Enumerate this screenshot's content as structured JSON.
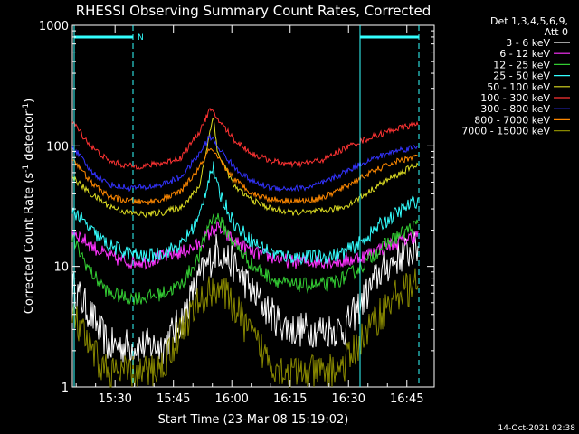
{
  "chart_data": {
    "type": "line",
    "title": "RHESSI Observing Summary Count Rates, Corrected",
    "xlabel": "Start Time (23-Mar-08 15:19:02)",
    "ylabel_main": "Corrected Count Rate (s",
    "ylabel_sup1": "-1",
    "ylabel_mid": " detector",
    "ylabel_sup2": "-1",
    "ylabel_end": ")",
    "y_scale": "log",
    "ylim": [
      1,
      1000
    ],
    "xlim_minutes": [
      0,
      62
    ],
    "x_ticks": [
      {
        "label": "15:30",
        "minute": 10.97
      },
      {
        "label": "15:45",
        "minute": 25.97
      },
      {
        "label": "16:00",
        "minute": 40.97
      },
      {
        "label": "16:15",
        "minute": 55.97
      },
      {
        "label": "16:30",
        "minute": 70.97
      },
      {
        "label": "16:45",
        "minute": 85.97
      }
    ],
    "y_ticks": [
      {
        "label": "1",
        "value": 1
      },
      {
        "label": "10",
        "value": 10
      },
      {
        "label": "100",
        "value": 100
      },
      {
        "label": "1000",
        "value": 1000
      }
    ],
    "legend_header": [
      "Det 1,3,4,5,6,9,",
      "Att 0"
    ],
    "legend_position": "right",
    "night_marker": "N",
    "timestamp": "14-Oct-2021 02:38",
    "series": [
      {
        "name": "3 - 6 keV",
        "color": "#ffffff",
        "x": [
          0,
          5,
          10,
          15,
          20,
          25,
          30,
          35,
          40,
          45,
          50,
          55,
          60,
          65,
          70,
          75,
          80,
          85,
          90,
          95,
          100
        ],
        "y": [
          7,
          4,
          2.2,
          2.2,
          2.2,
          2.2,
          3.5,
          8,
          14,
          10,
          6,
          4,
          3,
          3,
          3,
          3,
          5,
          9,
          12,
          14,
          14
        ]
      },
      {
        "name": "6 - 12 keV",
        "color": "#ff33ff",
        "x": [
          0,
          5,
          10,
          15,
          20,
          25,
          30,
          35,
          38,
          40,
          45,
          50,
          55,
          60,
          65,
          70,
          75,
          80,
          85,
          90,
          95,
          100
        ],
        "y": [
          20,
          15,
          12,
          11,
          11,
          12,
          13,
          15,
          19,
          21,
          16,
          13,
          12,
          11,
          11,
          11,
          11,
          12,
          14,
          16,
          18,
          18
        ]
      },
      {
        "name": "12 - 25 keV",
        "color": "#33cc33",
        "x": [
          0,
          5,
          10,
          15,
          20,
          25,
          30,
          35,
          38,
          40,
          45,
          50,
          55,
          60,
          65,
          70,
          75,
          80,
          85,
          90,
          95,
          100
        ],
        "y": [
          17,
          9,
          6,
          5.5,
          5.5,
          6,
          7,
          12,
          24,
          26,
          15,
          10,
          8,
          7,
          7,
          7,
          8,
          10,
          14,
          18,
          22,
          22
        ]
      },
      {
        "name": "25 - 50 keV",
        "color": "#33ffff",
        "x": [
          0,
          5,
          10,
          15,
          20,
          25,
          30,
          35,
          38,
          39,
          40,
          45,
          50,
          55,
          60,
          65,
          70,
          75,
          80,
          85,
          90,
          95,
          100
        ],
        "y": [
          30,
          20,
          15,
          13,
          12,
          13,
          15,
          25,
          60,
          65,
          45,
          22,
          16,
          13,
          12,
          12,
          12,
          13,
          16,
          22,
          28,
          35,
          35
        ]
      },
      {
        "name": "50 - 100 keV",
        "color": "#dddd22",
        "x": [
          0,
          5,
          10,
          15,
          20,
          25,
          30,
          35,
          38,
          39,
          40,
          45,
          50,
          55,
          60,
          65,
          70,
          75,
          80,
          85,
          90,
          95,
          100
        ],
        "y": [
          55,
          40,
          32,
          28,
          27,
          28,
          31,
          45,
          130,
          180,
          90,
          45,
          35,
          30,
          28,
          28,
          29,
          31,
          38,
          48,
          58,
          70,
          70
        ]
      },
      {
        "name": "100 - 300 keV",
        "color": "#ff3333",
        "x": [
          0,
          5,
          10,
          15,
          20,
          25,
          30,
          35,
          38,
          40,
          45,
          50,
          55,
          60,
          65,
          70,
          75,
          80,
          85,
          90,
          95,
          100
        ],
        "y": [
          160,
          100,
          75,
          68,
          68,
          72,
          80,
          130,
          200,
          170,
          110,
          85,
          75,
          70,
          72,
          78,
          95,
          110,
          125,
          140,
          150,
          150
        ]
      },
      {
        "name": "300 - 800 keV",
        "color": "#3333ff",
        "x": [
          0,
          5,
          10,
          15,
          20,
          25,
          30,
          35,
          38,
          40,
          45,
          50,
          55,
          60,
          65,
          70,
          75,
          80,
          85,
          90,
          95,
          100
        ],
        "y": [
          100,
          62,
          48,
          45,
          45,
          48,
          55,
          85,
          120,
          100,
          65,
          50,
          45,
          44,
          45,
          50,
          60,
          72,
          82,
          92,
          98,
          98
        ]
      },
      {
        "name": "800 - 7000 keV",
        "color": "#ff8800",
        "x": [
          0,
          5,
          10,
          15,
          20,
          25,
          30,
          35,
          38,
          40,
          45,
          50,
          55,
          60,
          65,
          70,
          75,
          80,
          85,
          90,
          95,
          100
        ],
        "y": [
          80,
          50,
          38,
          35,
          34,
          36,
          42,
          65,
          95,
          80,
          52,
          40,
          36,
          35,
          35,
          38,
          45,
          55,
          65,
          75,
          82,
          82
        ]
      },
      {
        "name": "7000 - 15000 keV",
        "color": "#888800",
        "x": [
          0,
          5,
          10,
          15,
          20,
          25,
          30,
          35,
          40,
          45,
          50,
          55,
          60,
          65,
          70,
          75,
          80,
          85,
          90,
          95,
          100
        ],
        "y": [
          4,
          2,
          1.3,
          1.3,
          1.3,
          1.5,
          3,
          5,
          7,
          4.5,
          2.5,
          1.6,
          1.3,
          1.3,
          1.3,
          1.5,
          2.5,
          4,
          6,
          7,
          7
        ]
      }
    ]
  }
}
